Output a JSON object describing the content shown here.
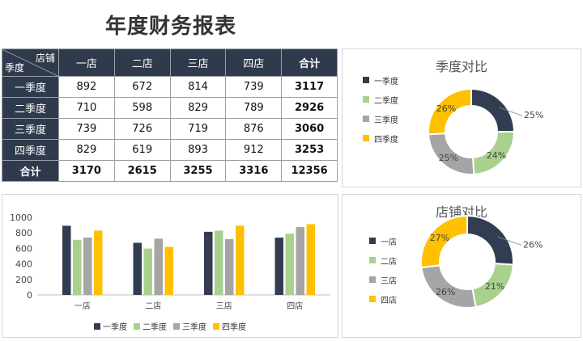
{
  "title": "年度财务报表",
  "colors": {
    "dark": "#323d51",
    "green": "#a8d18d",
    "gray": "#a5a5a5",
    "yellow": "#ffc000",
    "header_bg": "#2f3a4d"
  },
  "table": {
    "corner_top": "店铺",
    "corner_bottom": "季度",
    "columns": [
      "一店",
      "二店",
      "三店",
      "四店",
      "合计"
    ],
    "rows": [
      {
        "label": "一季度",
        "cells": [
          "892",
          "672",
          "814",
          "739",
          "3117"
        ]
      },
      {
        "label": "二季度",
        "cells": [
          "710",
          "598",
          "829",
          "789",
          "2926"
        ]
      },
      {
        "label": "三季度",
        "cells": [
          "739",
          "726",
          "719",
          "876",
          "3060"
        ]
      },
      {
        "label": "四季度",
        "cells": [
          "829",
          "619",
          "893",
          "912",
          "3253"
        ]
      }
    ],
    "total_row": {
      "label": "合计",
      "cells": [
        "3170",
        "2615",
        "3255",
        "3316",
        "12356"
      ]
    }
  },
  "chart_data": [
    {
      "type": "pie",
      "title": "季度对比",
      "labels": [
        "一季度",
        "二季度",
        "三季度",
        "四季度"
      ],
      "values": [
        25,
        24,
        25,
        26
      ],
      "data_labels": [
        "25%",
        "24%",
        "25%",
        "26%"
      ],
      "donut": true,
      "legend": "left"
    },
    {
      "type": "bar",
      "title": "",
      "categories": [
        "一店",
        "二店",
        "三店",
        "四店"
      ],
      "series": [
        {
          "name": "一季度",
          "values": [
            892,
            672,
            814,
            739
          ]
        },
        {
          "name": "二季度",
          "values": [
            710,
            598,
            829,
            789
          ]
        },
        {
          "name": "三季度",
          "values": [
            739,
            726,
            719,
            876
          ]
        },
        {
          "name": "四季度",
          "values": [
            829,
            619,
            893,
            912
          ]
        }
      ],
      "ylim": [
        0,
        1000
      ],
      "yticks": [
        "0",
        "200",
        "400",
        "600",
        "800",
        "1000"
      ],
      "legend": "bottom"
    },
    {
      "type": "pie",
      "title": "店铺对比",
      "labels": [
        "一店",
        "二店",
        "三店",
        "四店"
      ],
      "values": [
        26,
        21,
        26,
        27
      ],
      "data_labels": [
        "26%",
        "21%",
        "26%",
        "27%"
      ],
      "donut": true,
      "legend": "left"
    }
  ]
}
